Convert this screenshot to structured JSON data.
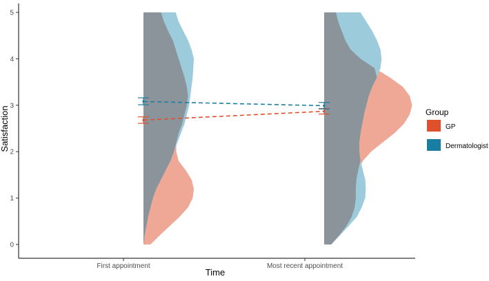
{
  "chart_data": {
    "type": "split violin with means and error bars",
    "xlabel": "Time",
    "ylabel": "Satisfaction",
    "categories": [
      "First appointment",
      "Most recent appointment"
    ],
    "ylim": [
      0,
      5
    ],
    "yticks": [
      "0",
      "1",
      "2",
      "3",
      "4",
      "5"
    ],
    "grid": false,
    "legend": {
      "title": "Group",
      "placement": "right",
      "entries": [
        {
          "label": "GP",
          "color": "#e1502d"
        },
        {
          "label": "Dermatologist",
          "color": "#1a7ea3"
        }
      ]
    },
    "series": [
      {
        "name": "GP",
        "color": "#e1502d",
        "fill": "#f0a896",
        "means": [
          2.68,
          2.87
        ],
        "error_low": [
          2.61,
          2.81
        ],
        "error_high": [
          2.75,
          2.93
        ],
        "densities": [
          {
            "category": "First appointment",
            "y": [
              0,
              0.2,
              0.4,
              0.6,
              0.8,
              1.0,
              1.2,
              1.4,
              1.6,
              1.8,
              2.0,
              2.2,
              2.4,
              2.6,
              2.8,
              3.0,
              3.2,
              3.4,
              3.6,
              3.8,
              4.0,
              4.2,
              4.4,
              4.6,
              4.8,
              5.0
            ],
            "width": [
              0.12,
              0.28,
              0.45,
              0.62,
              0.76,
              0.84,
              0.86,
              0.82,
              0.72,
              0.6,
              0.56,
              0.56,
              0.6,
              0.66,
              0.7,
              0.74,
              0.76,
              0.74,
              0.7,
              0.65,
              0.6,
              0.55,
              0.5,
              0.42,
              0.35,
              0.3
            ]
          },
          {
            "category": "Most recent appointment",
            "y": [
              0,
              0.2,
              0.4,
              0.6,
              0.8,
              1.0,
              1.2,
              1.4,
              1.6,
              1.8,
              2.0,
              2.2,
              2.4,
              2.6,
              2.8,
              3.0,
              3.2,
              3.4,
              3.6,
              3.8,
              4.0,
              4.2,
              4.4,
              4.6,
              4.8,
              5.0
            ],
            "width": [
              0.12,
              0.26,
              0.38,
              0.47,
              0.52,
              0.54,
              0.54,
              0.55,
              0.58,
              0.66,
              0.8,
              1.0,
              1.2,
              1.36,
              1.46,
              1.5,
              1.46,
              1.34,
              1.12,
              0.86,
              0.62,
              0.45,
              0.36,
              0.3,
              0.24,
              0.2
            ]
          }
        ]
      },
      {
        "name": "Dermatologist",
        "color": "#1a7ea3",
        "fill": "#9ccbdc",
        "means": [
          3.08,
          2.99
        ],
        "error_low": [
          3.01,
          2.92
        ],
        "error_high": [
          3.16,
          3.06
        ],
        "densities": [
          {
            "category": "First appointment",
            "y": [
              0,
              0.2,
              0.4,
              0.6,
              0.8,
              1.0,
              1.2,
              1.4,
              1.6,
              1.8,
              2.0,
              2.2,
              2.4,
              2.6,
              2.8,
              3.0,
              3.2,
              3.4,
              3.6,
              3.8,
              4.0,
              4.2,
              4.4,
              4.6,
              4.8,
              5.0
            ],
            "width": [
              0.0,
              0.02,
              0.05,
              0.08,
              0.12,
              0.16,
              0.22,
              0.3,
              0.38,
              0.46,
              0.52,
              0.58,
              0.64,
              0.7,
              0.74,
              0.78,
              0.8,
              0.82,
              0.84,
              0.85,
              0.86,
              0.82,
              0.76,
              0.68,
              0.6,
              0.55
            ]
          },
          {
            "category": "Most recent appointment",
            "y": [
              0,
              0.2,
              0.4,
              0.6,
              0.8,
              1.0,
              1.2,
              1.4,
              1.6,
              1.8,
              2.0,
              2.2,
              2.4,
              2.6,
              2.8,
              3.0,
              3.2,
              3.4,
              3.6,
              3.8,
              4.0,
              4.2,
              4.4,
              4.6,
              4.8,
              5.0
            ],
            "width": [
              0.12,
              0.27,
              0.42,
              0.56,
              0.64,
              0.7,
              0.71,
              0.7,
              0.66,
              0.62,
              0.6,
              0.6,
              0.62,
              0.65,
              0.68,
              0.72,
              0.76,
              0.82,
              0.9,
              0.96,
              0.98,
              0.96,
              0.9,
              0.82,
              0.72,
              0.62
            ]
          }
        ]
      }
    ]
  }
}
